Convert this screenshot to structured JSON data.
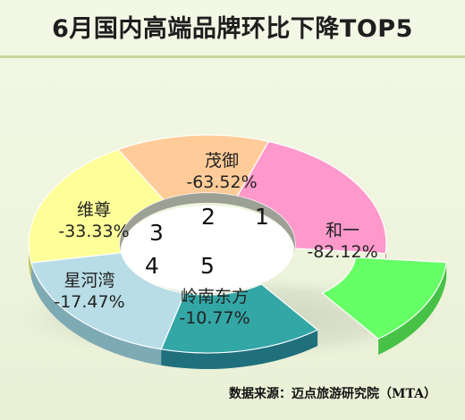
{
  "title": "6月国内高端品牌环比下降TOP5",
  "source": "数据来源：迈点旅游研究院（MTA）",
  "chart_data": {
    "type": "pie",
    "subtype": "3d-donut-exploded",
    "slices": [
      {
        "name": "和一",
        "value_label": "-82.12%",
        "value": -82.12,
        "color": "#ff99cc",
        "side": "#c35b92"
      },
      {
        "name": "茂御",
        "value_label": "-63.52%",
        "value": -63.52,
        "color": "#ffcc99",
        "side": "#c59062"
      },
      {
        "name": "维尊",
        "value_label": "-33.33%",
        "value": -33.33,
        "color": "#ffff99",
        "side": "#c7c662"
      },
      {
        "name": "星河湾",
        "value_label": "-17.47%",
        "value": -17.47,
        "color": "#b8dde6",
        "side": "#7eaab4"
      },
      {
        "name": "岭南东方",
        "value_label": "-10.77%",
        "value": -10.77,
        "color": "#33a6a6",
        "side": "#1f6f7d"
      },
      {
        "name": "",
        "value_label": "",
        "value": null,
        "color": "#66ff66",
        "side": "#47c247"
      }
    ],
    "rank_labels": [
      "1",
      "2",
      "3",
      "4",
      "5"
    ]
  }
}
